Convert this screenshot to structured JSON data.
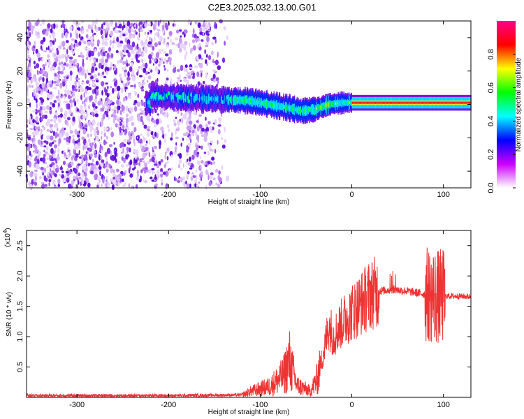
{
  "title": "C2E3.2025.032.13.00.G01",
  "chart_data": [
    {
      "type": "heatmap",
      "xlabel": "Height of straight line (km)",
      "ylabel": "Frequency (Hz)",
      "xlim": [
        -355,
        130
      ],
      "ylim": [
        -50,
        50
      ],
      "x_ticks": [
        -300,
        -200,
        -100,
        0,
        100
      ],
      "x_tick_labels": [
        "-300",
        "-200",
        "-100",
        "0",
        "100"
      ],
      "y_ticks": [
        -40,
        -20,
        0,
        20,
        40
      ],
      "y_tick_labels": [
        "-40",
        "-20",
        "0",
        "20",
        "40"
      ],
      "noise_region": {
        "x_start": -355,
        "x_end": -135
      },
      "signal_centerline": [
        {
          "x": -220,
          "y": 5
        },
        {
          "x": -180,
          "y": 4
        },
        {
          "x": -140,
          "y": 3
        },
        {
          "x": -110,
          "y": 2
        },
        {
          "x": -90,
          "y": 0
        },
        {
          "x": -70,
          "y": -2
        },
        {
          "x": -55,
          "y": -4
        },
        {
          "x": -40,
          "y": -3
        },
        {
          "x": -25,
          "y": 0
        },
        {
          "x": -10,
          "y": 1
        },
        {
          "x": 0,
          "y": 1
        },
        {
          "x": 20,
          "y": 1
        },
        {
          "x": 60,
          "y": 1
        },
        {
          "x": 100,
          "y": 1
        },
        {
          "x": 130,
          "y": 1
        }
      ],
      "colorbar": {
        "label": "Normalized spectral amplitude",
        "range": [
          0,
          1
        ],
        "ticks": [
          0.0,
          0.2,
          0.4,
          0.6,
          0.8
        ],
        "tick_labels": [
          "0.0",
          "0.2",
          "0.4",
          "0.6",
          "0.8"
        ],
        "colors": [
          "#ffffff",
          "#cc00ff",
          "#0000ff",
          "#00ffff",
          "#00ff00",
          "#ffff00",
          "#ff0000",
          "#ff0088"
        ]
      }
    },
    {
      "type": "line",
      "xlabel": "Height of straight line (km)",
      "ylabel": "SNR (10 * v/v)",
      "y_multiplier": "(x10",
      "y_multiplier_exp": "4",
      "y_multiplier_close": ")",
      "xlim": [
        -355,
        130
      ],
      "ylim": [
        0,
        27500
      ],
      "x_ticks": [
        -300,
        -200,
        -100,
        0,
        100
      ],
      "x_tick_labels": [
        "-300",
        "-200",
        "-100",
        "0",
        "100"
      ],
      "y_ticks": [
        5000,
        10000,
        15000,
        20000,
        25000
      ],
      "y_tick_labels": [
        "0.5",
        "1.0",
        "1.5",
        "2.0",
        "2.5"
      ],
      "color": "#ee3333",
      "envelope": [
        {
          "x": -355,
          "y": 300
        },
        {
          "x": -200,
          "y": 300
        },
        {
          "x": -120,
          "y": 400
        },
        {
          "x": -110,
          "y": 1000
        },
        {
          "x": -90,
          "y": 1800
        },
        {
          "x": -75,
          "y": 3500
        },
        {
          "x": -68,
          "y": 6000
        },
        {
          "x": -60,
          "y": 2000
        },
        {
          "x": -45,
          "y": 1000
        },
        {
          "x": -38,
          "y": 3000
        },
        {
          "x": -30,
          "y": 8000
        },
        {
          "x": -25,
          "y": 12000
        },
        {
          "x": -20,
          "y": 10000
        },
        {
          "x": -10,
          "y": 12500
        },
        {
          "x": 0,
          "y": 14000
        },
        {
          "x": 10,
          "y": 15500
        },
        {
          "x": 20,
          "y": 17000
        },
        {
          "x": 30,
          "y": 17500
        },
        {
          "x": 45,
          "y": 17800
        },
        {
          "x": 60,
          "y": 17500
        },
        {
          "x": 80,
          "y": 17000
        },
        {
          "x": 95,
          "y": 16500
        },
        {
          "x": 105,
          "y": 16700
        },
        {
          "x": 130,
          "y": 16600
        }
      ]
    }
  ]
}
